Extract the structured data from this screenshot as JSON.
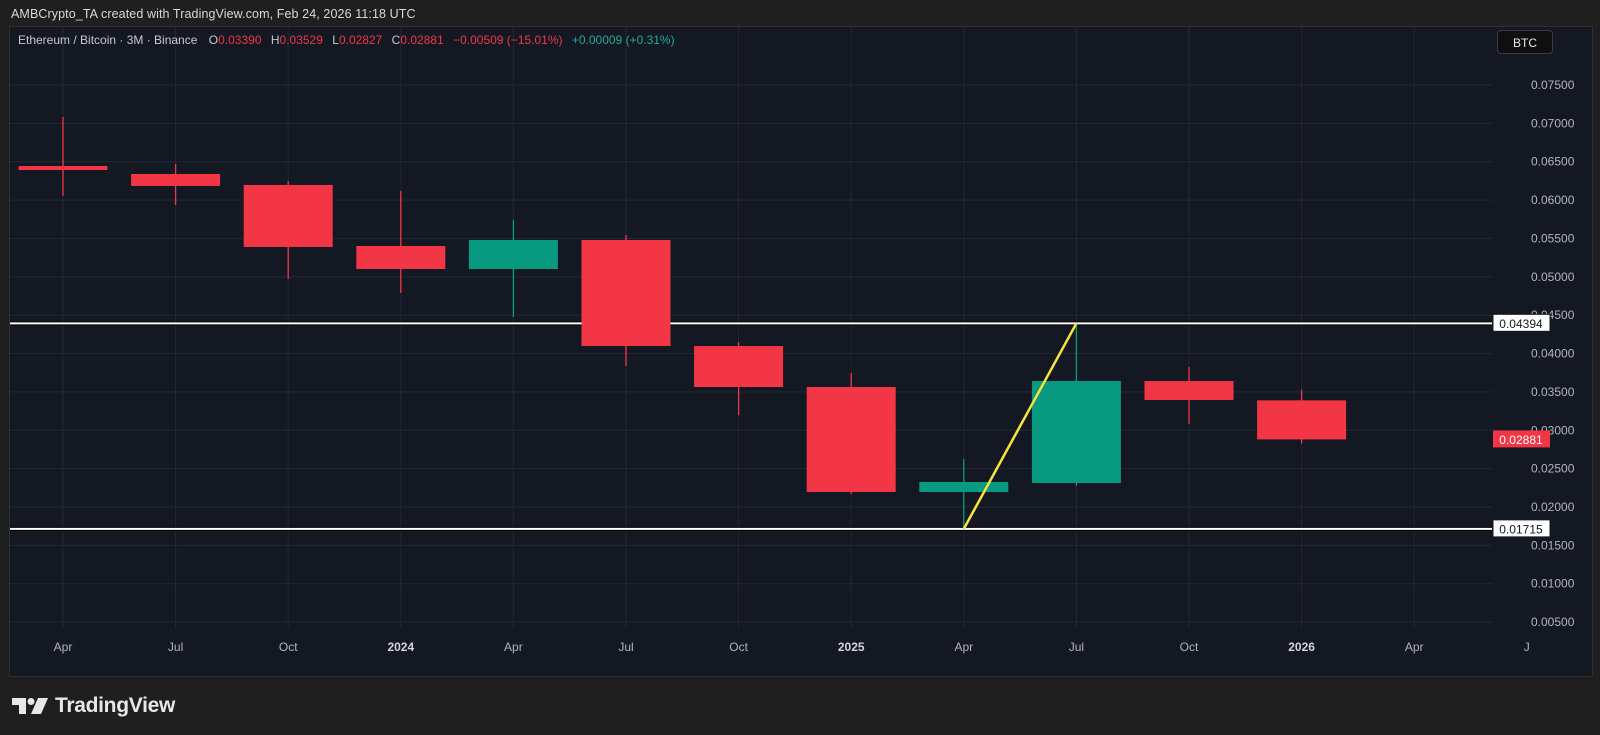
{
  "credit": "AMBCrypto_TA created with TradingView.com, Feb 24, 2026 11:18 UTC",
  "legend": {
    "symbol": "Ethereum / Bitcoin · 3M · Binance",
    "o_label": "O",
    "o_value": "0.03390",
    "h_label": "H",
    "h_value": "0.03529",
    "l_label": "L",
    "l_value": "0.02827",
    "c_label": "C",
    "c_value": "0.02881",
    "change": "−0.00509 (−15.01%)",
    "change2": "+0.00009 (+0.31%)"
  },
  "currency_badge": "BTC",
  "logo_text": "TradingView",
  "colors": {
    "up": "#089981",
    "down": "#f23645",
    "trendline": "#f7e43a",
    "hline": "#ffffff",
    "grid": "#232733",
    "axis_text": "#b2b5be"
  },
  "chart_data": {
    "type": "candlestick",
    "title": "Ethereum / Bitcoin · 3M · Binance",
    "xlabel": "",
    "ylabel": "BTC",
    "ylim": [
      0.0,
      0.08
    ],
    "grid": true,
    "x_ticks": [
      "Apr",
      "Jul",
      "Oct",
      "2024",
      "Apr",
      "Jul",
      "Oct",
      "2025",
      "Apr",
      "Jul",
      "Oct",
      "2026",
      "Apr",
      "J"
    ],
    "bold_ticks": [
      "2024",
      "2025",
      "2026"
    ],
    "y_ticks": [
      "0.07500",
      "0.07000",
      "0.06500",
      "0.06000",
      "0.05500",
      "0.05000",
      "0.04500",
      "0.04000",
      "0.03500",
      "0.03000",
      "0.02500",
      "0.02000",
      "0.01500",
      "0.01000",
      "0.00500"
    ],
    "categories": [
      "Apr 2023",
      "Jul 2023",
      "Oct 2023",
      "Jan 2024",
      "Apr 2024",
      "Jul 2024",
      "Oct 2024",
      "Jan 2025",
      "Apr 2025",
      "Jul 2025",
      "Oct 2025",
      "Jan 2026"
    ],
    "candles": [
      {
        "o": 0.06444,
        "h": 0.07083,
        "l": 0.06053,
        "c": 0.06392
      },
      {
        "o": 0.0634,
        "h": 0.0647,
        "l": 0.05936,
        "c": 0.06184
      },
      {
        "o": 0.06197,
        "h": 0.06249,
        "l": 0.04972,
        "c": 0.05389
      },
      {
        "o": 0.05402,
        "h": 0.06119,
        "l": 0.04789,
        "c": 0.05102
      },
      {
        "o": 0.05102,
        "h": 0.05741,
        "l": 0.04476,
        "c": 0.0548
      },
      {
        "o": 0.0548,
        "h": 0.05545,
        "l": 0.03838,
        "c": 0.04098
      },
      {
        "o": 0.04098,
        "h": 0.0415,
        "l": 0.03199,
        "c": 0.03564
      },
      {
        "o": 0.03564,
        "h": 0.03747,
        "l": 0.0217,
        "c": 0.02196
      },
      {
        "o": 0.02196,
        "h": 0.02626,
        "l": 0.01715,
        "c": 0.02326
      },
      {
        "o": 0.02313,
        "h": 0.04394,
        "l": 0.02274,
        "c": 0.03642
      },
      {
        "o": 0.03642,
        "h": 0.03825,
        "l": 0.03082,
        "c": 0.03395
      },
      {
        "o": 0.0339,
        "h": 0.03529,
        "l": 0.02827,
        "c": 0.02881
      }
    ],
    "horizontal_lines": [
      {
        "value": 0.04394,
        "label": "0.04394"
      },
      {
        "value": 0.01715,
        "label": "0.01715"
      }
    ],
    "trendline": {
      "from": {
        "index": 8,
        "value": 0.01715
      },
      "to": {
        "index": 9,
        "value": 0.04394
      }
    },
    "last_price": {
      "value": 0.02881,
      "label": "0.02881"
    }
  }
}
